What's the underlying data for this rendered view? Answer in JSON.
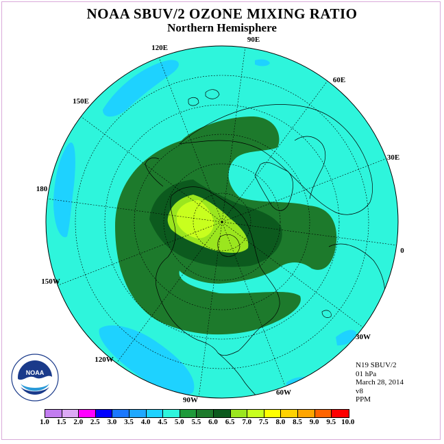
{
  "title": "NOAA SBUV/2 OZONE MIXING RATIO",
  "subtitle": "Northern Hemisphere",
  "longitude_labels": [
    "90E",
    "60E",
    "30E",
    "0",
    "30W",
    "60W",
    "90W",
    "120W",
    "150W",
    "180",
    "150E",
    "120E"
  ],
  "info_lines": [
    "N19 SBUV/2",
    "01 hPa",
    "March 28, 2014",
    "v8",
    "PPM"
  ],
  "colorbar": {
    "ticks": [
      "1.0",
      "1.5",
      "2.0",
      "2.5",
      "3.0",
      "3.5",
      "4.0",
      "4.5",
      "5.0",
      "5.5",
      "6.0",
      "6.5",
      "7.0",
      "7.5",
      "8.0",
      "8.5",
      "9.0",
      "9.5",
      "10.0"
    ],
    "colors": [
      "#c27df0",
      "#dca9f5",
      "#ff00ff",
      "#0000ff",
      "#1a78ff",
      "#1ea8ff",
      "#1ed2ff",
      "#2ef5dc",
      "#1f9a3a",
      "#1d7a2c",
      "#0c5a1e",
      "#9be61e",
      "#c8ff1e",
      "#ffff00",
      "#ffd200",
      "#ffa500",
      "#ff6400",
      "#ff0000",
      "#8b5a2b"
    ]
  },
  "colors": {
    "ocean_fill": "#2ef5dc",
    "band_55": "#1d7a2c",
    "band_60": "#0c5a1e",
    "band_65": "#9be61e",
    "band_70": "#c8ff1e",
    "low_40": "#1ed2ff"
  }
}
